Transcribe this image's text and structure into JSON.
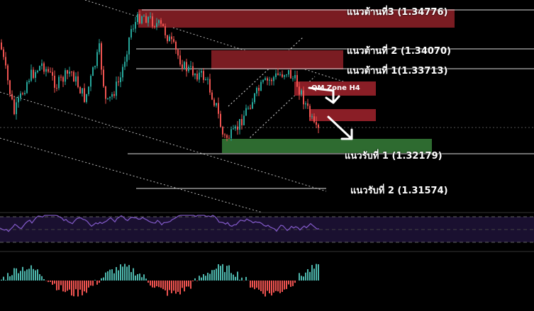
{
  "levels": {
    "r3": "แนวต้านที่3 (1.34776)",
    "r2": "แนวต้านที่ 2 (1.34070)",
    "r1": "แนวต้านที่ 1(1.33713)",
    "s1": "แนวรับที่ 1 (1.32179)",
    "s2": "แนวรับที่ 2 (1.31574)"
  },
  "zone_label": "QM Zone H4",
  "colors": {
    "background": "#000000",
    "up_candle": "#26a69a",
    "down_candle": "#ef5350",
    "resistance_zone": "#7a1c22",
    "support_zone": "#2e6b30",
    "rsi_line": "#7e57c2",
    "rsi_band": "#1a1030",
    "hist_up": "#4db6ac",
    "hist_down": "#ef5350"
  },
  "icons": [
    "arrow-down-right-icon",
    "arrow-down-right-icon"
  ]
}
